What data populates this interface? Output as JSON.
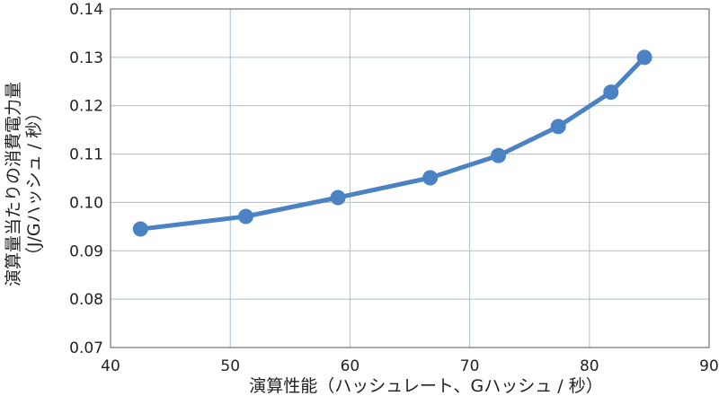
{
  "chart_data": {
    "type": "line",
    "xlabel": "演算性能（ハッシュレート、Gハッシュ / 秒）",
    "ylabel": "演算量当たりの消費電力量",
    "ylabel_unit": "（J/Gハッシュ / 秒）",
    "xlim": [
      40,
      90
    ],
    "ylim": [
      0.07,
      0.14
    ],
    "x_ticks": [
      "40",
      "50",
      "60",
      "70",
      "80",
      "90"
    ],
    "y_ticks": [
      "0.07",
      "0.08",
      "0.09",
      "0.10",
      "0.11",
      "0.12",
      "0.13",
      "0.14"
    ],
    "grid": true,
    "series": [
      {
        "color": "#4a82c3",
        "x": [
          42.5,
          51.3,
          59.0,
          66.7,
          72.4,
          77.4,
          81.8,
          84.6
        ],
        "y": [
          0.0945,
          0.0971,
          0.101,
          0.1051,
          0.1097,
          0.1157,
          0.1228,
          0.13
        ]
      }
    ]
  },
  "colors": {
    "line": "#4a82c3",
    "grid": "#a9bfd3",
    "axis": "#555555"
  }
}
